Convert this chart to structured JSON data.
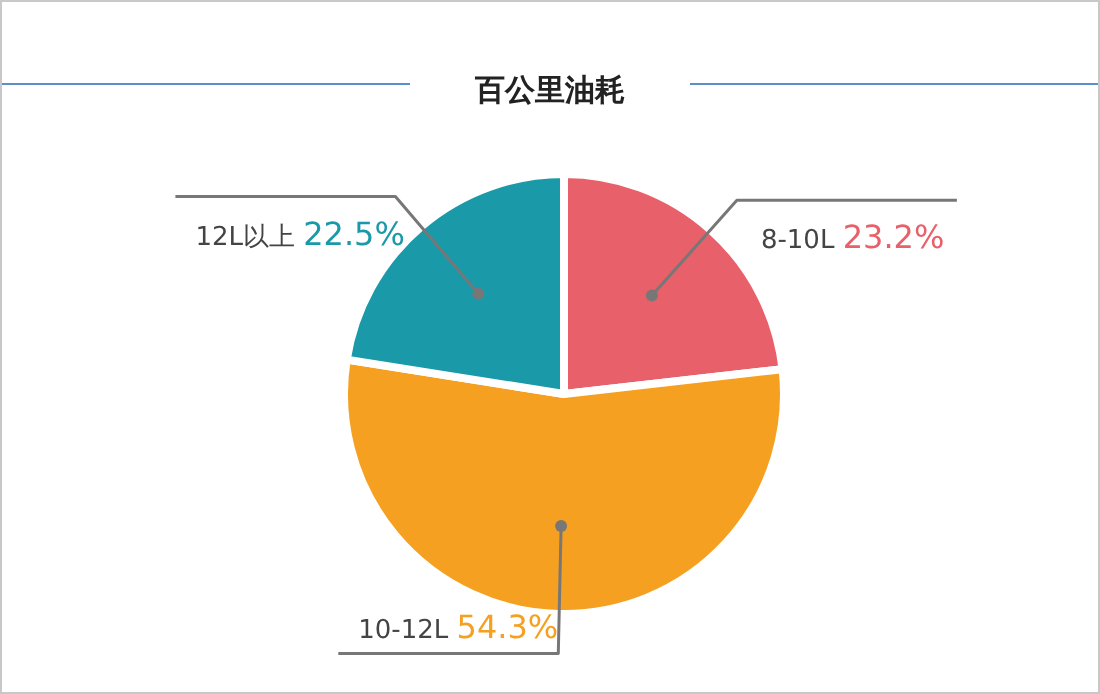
{
  "chart_data": {
    "type": "pie",
    "title": "百公里油耗",
    "categories": [
      "8-10L",
      "10-12L",
      "12L以上"
    ],
    "values": [
      23.2,
      54.3,
      22.5
    ],
    "value_labels": [
      "23.2%",
      "54.3%",
      "22.5%"
    ],
    "colors": [
      "#e8606a",
      "#f5a020",
      "#1a9aa8"
    ]
  }
}
